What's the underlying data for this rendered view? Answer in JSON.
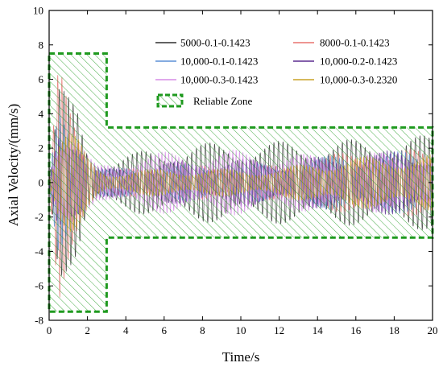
{
  "chart_data": {
    "type": "line",
    "title": "",
    "xlabel": "Time/s",
    "ylabel": "Axial Velocity/(mm/s)",
    "xlim": [
      0,
      20
    ],
    "ylim": [
      -8,
      10
    ],
    "xticks": [
      0,
      2,
      4,
      6,
      8,
      10,
      12,
      14,
      16,
      18,
      20
    ],
    "yticks": [
      -8,
      -6,
      -4,
      -2,
      0,
      2,
      4,
      6,
      8,
      10
    ],
    "grid": false,
    "legend_position": "top-right",
    "series": [
      {
        "name": "5000-0.1-0.1423",
        "color": "#2f2f2f",
        "t": [
          0,
          0.5,
          1,
          1.5,
          2,
          2.5,
          3,
          4,
          5,
          6,
          8,
          10,
          12,
          14,
          16,
          18,
          20
        ],
        "amplitude": [
          0.2,
          5.8,
          5.0,
          4.5,
          2.2,
          1.2,
          1.4,
          1.6,
          1.9,
          2.2,
          2.3,
          2.4,
          2.4,
          2.5,
          2.5,
          2.6,
          2.8
        ]
      },
      {
        "name": "8000-0.1-0.1423",
        "color": "#e8726f",
        "t": [
          0,
          0.5,
          1,
          1.5,
          2,
          2.5,
          3,
          4,
          6,
          8,
          10,
          12,
          14,
          16,
          18,
          20
        ],
        "amplitude": [
          0.2,
          7.0,
          5.2,
          4.0,
          2.0,
          1.0,
          0.7,
          0.8,
          1.0,
          1.0,
          1.0,
          1.0,
          1.6,
          1.8,
          1.9,
          2.0
        ]
      },
      {
        "name": "10,000-0.1-0.1423",
        "color": "#5b8fd6",
        "t": [
          0,
          0.5,
          1,
          1.5,
          2,
          2.5,
          3,
          4,
          6,
          8,
          10,
          12,
          14,
          16,
          18,
          20
        ],
        "amplitude": [
          0.2,
          5.0,
          4.6,
          3.6,
          1.9,
          1.0,
          0.8,
          0.9,
          1.0,
          1.1,
          1.1,
          1.1,
          1.5,
          1.7,
          1.8,
          1.9
        ]
      },
      {
        "name": "10,000-0.2-0.1423",
        "color": "#5b2b8f",
        "t": [
          0,
          0.5,
          1,
          1.5,
          2,
          2.5,
          3,
          4,
          6,
          8,
          10,
          12,
          14,
          16,
          18,
          20
        ],
        "amplitude": [
          0.2,
          4.4,
          4.2,
          3.2,
          1.7,
          0.9,
          0.8,
          1.0,
          1.2,
          1.3,
          1.4,
          1.4,
          1.5,
          1.7,
          1.9,
          2.0
        ]
      },
      {
        "name": "10,000-0.3-0.1423",
        "color": "#d58be6",
        "t": [
          0,
          0.5,
          1,
          1.5,
          2,
          2.5,
          3,
          4,
          6,
          8,
          10,
          12,
          14,
          16,
          18,
          20
        ],
        "amplitude": [
          0.2,
          3.6,
          3.6,
          2.8,
          1.6,
          1.0,
          1.2,
          1.6,
          1.8,
          1.9,
          1.9,
          1.8,
          1.6,
          1.7,
          1.8,
          1.9
        ]
      },
      {
        "name": "10,000-0.3-0.2320",
        "color": "#c9a227",
        "t": [
          0,
          0.5,
          1,
          1.5,
          2,
          2.5,
          3,
          4,
          6,
          8,
          10,
          12,
          14,
          16,
          18,
          20
        ],
        "amplitude": [
          0.2,
          3.2,
          3.4,
          2.6,
          1.5,
          0.9,
          0.6,
          0.7,
          0.8,
          0.8,
          0.8,
          0.8,
          1.3,
          1.5,
          1.6,
          1.7
        ]
      }
    ],
    "reliable_zone": {
      "name": "Reliable Zone",
      "color": "#1f9a1f",
      "outline": [
        [
          0,
          7.5
        ],
        [
          3,
          7.5
        ],
        [
          3,
          3.2
        ],
        [
          20,
          3.2
        ],
        [
          20,
          -3.2
        ],
        [
          3,
          -3.2
        ],
        [
          3,
          -7.5
        ],
        [
          0,
          -7.5
        ]
      ]
    }
  }
}
